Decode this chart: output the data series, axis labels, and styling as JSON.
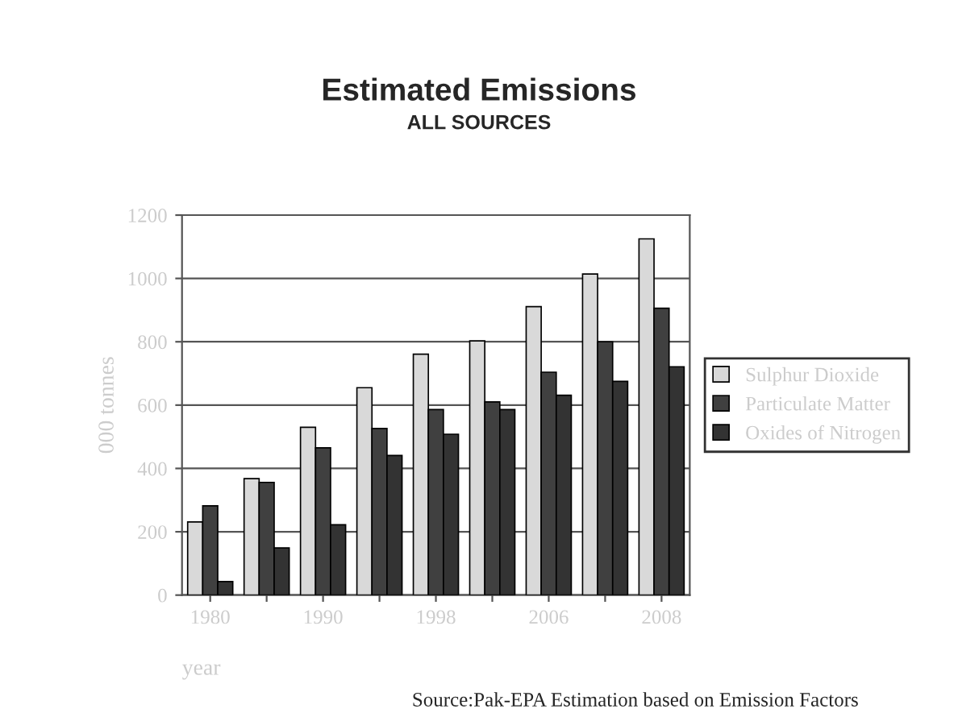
{
  "chart_data": {
    "type": "bar",
    "title": "Estimated Emissions",
    "subtitle": "ALL SOURCES",
    "xlabel": "year",
    "ylabel": "000 tonnes",
    "categories": [
      "1980",
      null,
      "1990",
      null,
      "1998",
      null,
      "2006",
      null,
      "2008"
    ],
    "series": [
      {
        "name": "Sulphur Dioxide",
        "color": "#d9d9d9",
        "values": [
          231,
          368,
          530,
          655,
          761,
          803,
          911,
          1014,
          1125
        ]
      },
      {
        "name": "Particulate Matter",
        "color": "#404040",
        "values": [
          282,
          356,
          465,
          526,
          586,
          610,
          704,
          800,
          906
        ]
      },
      {
        "name": "Oxides of Nitrogen",
        "color": "#333333",
        "values": [
          43,
          149,
          222,
          441,
          508,
          586,
          631,
          675,
          721
        ]
      }
    ],
    "ylim": [
      0,
      1200
    ],
    "yticks": [
      0,
      200,
      400,
      600,
      800,
      1000,
      1200
    ],
    "grid": "y",
    "legend": "right",
    "annotations": [
      "Source:Pak-EPA Estimation based on Emission Factors"
    ]
  }
}
